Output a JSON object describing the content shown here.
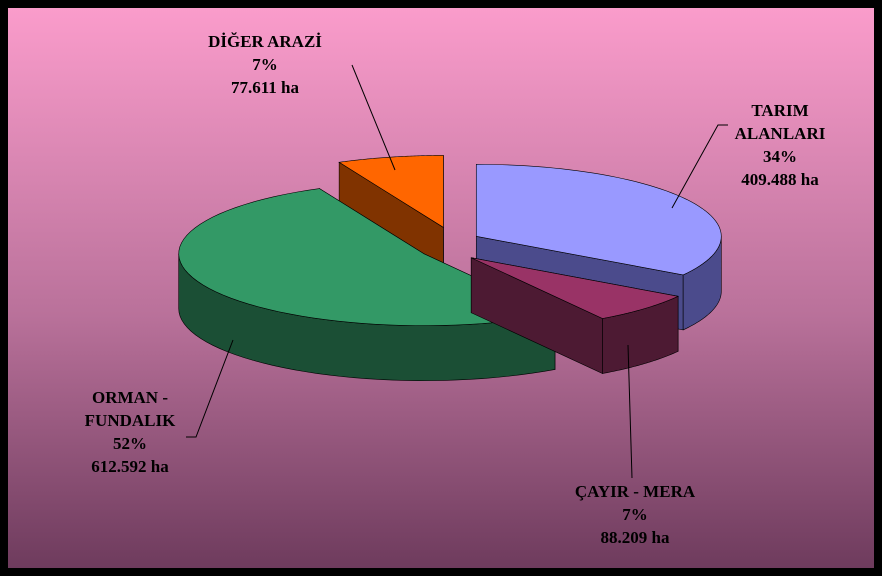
{
  "chart_data": {
    "type": "pie3d",
    "categories": [
      "TARIM ALANLARI",
      "ÇAYIR - MERA",
      "ORMAN - FUNDALIK",
      "DİĞER ARAZİ"
    ],
    "values": [
      34,
      7,
      52,
      7
    ],
    "value_labels": [
      "34%",
      "7%",
      "52%",
      "7%"
    ],
    "areas": [
      409488,
      88209,
      612592,
      77611
    ],
    "area_labels": [
      "409.488 ha",
      "88.209 ha",
      "612.592 ha",
      "77.611 ha"
    ],
    "colors": [
      "#9999ff",
      "#993366",
      "#339966",
      "#ff6600"
    ],
    "side_colors": [
      "#4b4b8c",
      "#4d1a33",
      "#1b4f35",
      "#803300"
    ]
  }
}
